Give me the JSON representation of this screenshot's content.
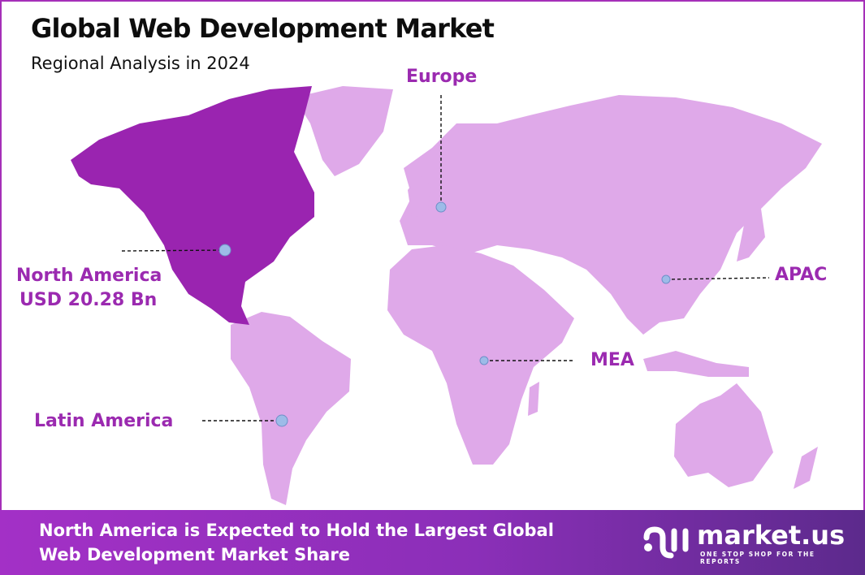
{
  "header": {
    "title": "Global Web Development Market",
    "subtitle": "Regional Analysis in 2024"
  },
  "regions": [
    {
      "id": "europe",
      "label": "Europe"
    },
    {
      "id": "north-america",
      "label": "North America",
      "value": "USD 20.28 Bn",
      "highlighted": true
    },
    {
      "id": "apac",
      "label": "APAC"
    },
    {
      "id": "mea",
      "label": "MEA"
    },
    {
      "id": "latin-america",
      "label": "Latin America"
    }
  ],
  "colors": {
    "highlight": "#9a24b0",
    "base": "#dfa9e9",
    "label": "#9b2ab0",
    "marker": "#9dbbe8",
    "frame": "#a52fb8"
  },
  "footer": {
    "line1": "North America is Expected to Hold the Largest Global",
    "line2": "Web Development Market Share"
  },
  "logo": {
    "name": "market.us",
    "tagline": "ONE STOP SHOP FOR THE REPORTS"
  }
}
